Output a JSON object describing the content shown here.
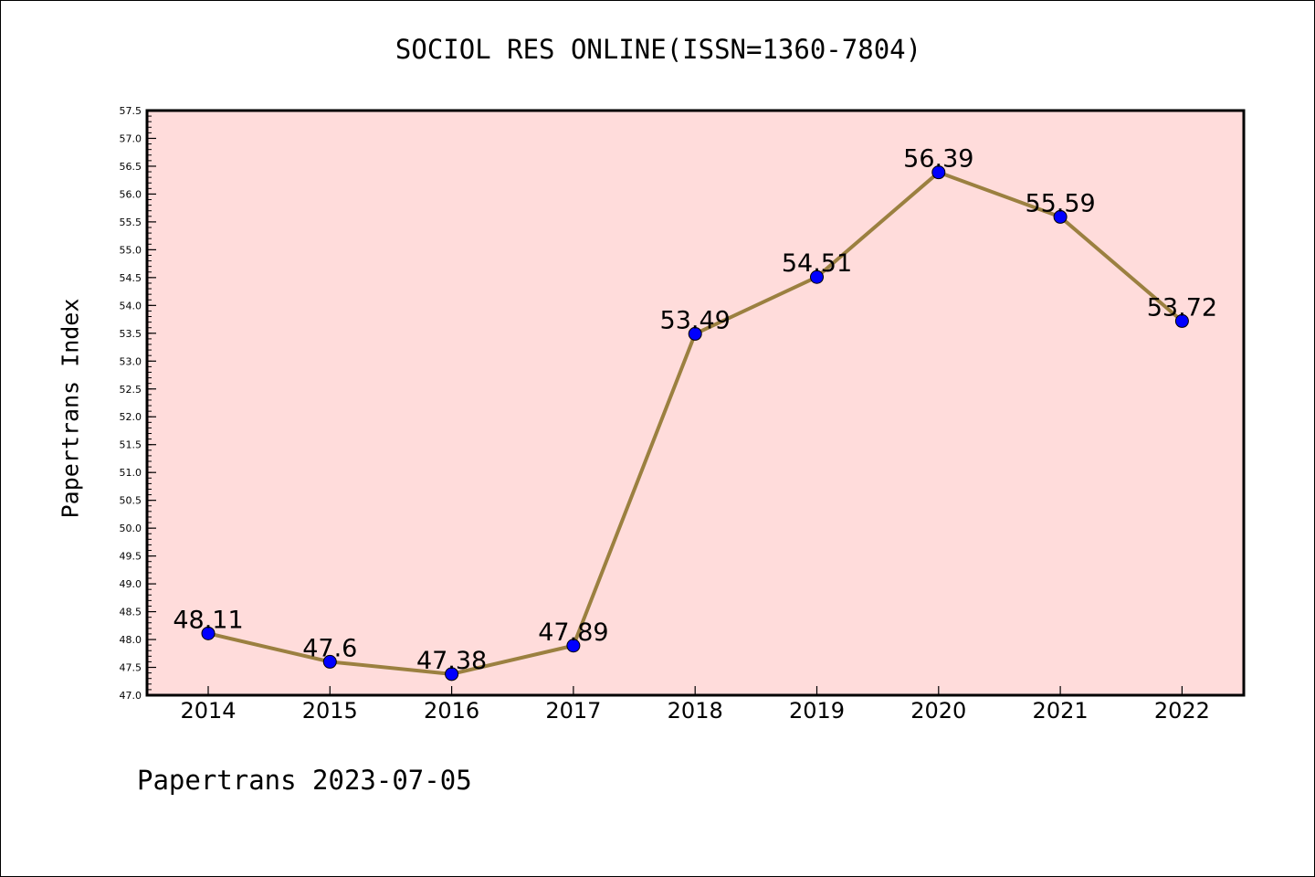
{
  "chart_data": {
    "type": "line",
    "title": "SOCIOL RES ONLINE(ISSN=1360-7804)",
    "xlabel": "",
    "ylabel": "Papertrans Index",
    "categories": [
      "2014",
      "2015",
      "2016",
      "2017",
      "2018",
      "2019",
      "2020",
      "2021",
      "2022"
    ],
    "series": [
      {
        "values": [
          48.11,
          47.6,
          47.38,
          47.89,
          53.49,
          54.51,
          56.39,
          55.59,
          53.72
        ],
        "labels": [
          "48.11",
          "47.6",
          "47.38",
          "47.89",
          "53.49",
          "54.51",
          "56.39",
          "55.59",
          "53.72"
        ],
        "line_color": "#9b8040",
        "marker_color": "#0000ff"
      }
    ],
    "ylim": [
      47.0,
      57.5
    ],
    "yticks": [
      "47.0",
      "47.5",
      "48.0",
      "48.5",
      "49.0",
      "49.5",
      "50.0",
      "50.5",
      "51.0",
      "51.5",
      "52.0",
      "52.5",
      "53.0",
      "53.5",
      "54.0",
      "54.5",
      "55.0",
      "55.5",
      "56.0",
      "56.5",
      "57.0",
      "57.5"
    ],
    "plot_background": "#ffdcdb",
    "grid": false,
    "legend": "none"
  },
  "footer": "Papertrans 2023-07-05"
}
